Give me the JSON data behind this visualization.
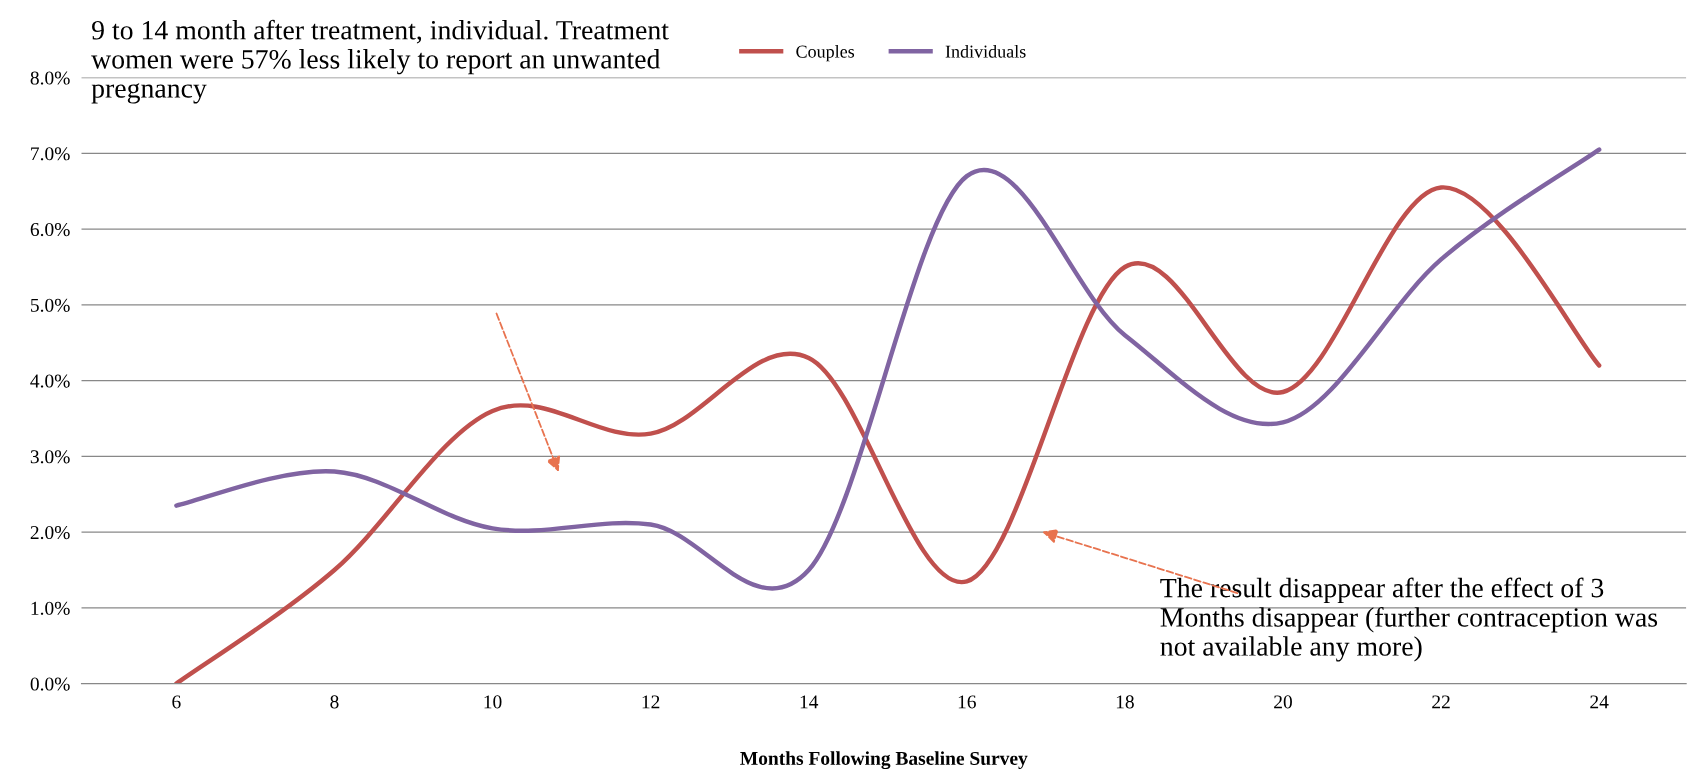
{
  "chart_data": {
    "type": "line",
    "xlabel": "Months Following Baseline Survey",
    "categories": [
      "6",
      "8",
      "10",
      "12",
      "14",
      "16",
      "18",
      "20",
      "22",
      "24"
    ],
    "series": [
      {
        "name": "Couples",
        "color": "#c0504d",
        "values": [
          0.0,
          1.5,
          3.6,
          3.3,
          4.3,
          1.35,
          5.5,
          3.85,
          6.55,
          4.2
        ]
      },
      {
        "name": "Individuals",
        "color": "#8064a2",
        "values": [
          2.35,
          2.8,
          2.05,
          2.1,
          1.5,
          6.7,
          4.6,
          3.45,
          5.6,
          7.05
        ]
      }
    ],
    "ylim": [
      0,
      8
    ],
    "yticks": [
      {
        "value": 0,
        "label": "0.0%"
      },
      {
        "value": 1,
        "label": "1.0%"
      },
      {
        "value": 2,
        "label": "2.0%"
      },
      {
        "value": 3,
        "label": "3.0%"
      },
      {
        "value": 4,
        "label": "4.0%"
      },
      {
        "value": 5,
        "label": "5.0%"
      },
      {
        "value": 6,
        "label": "6.0%"
      },
      {
        "value": 7,
        "label": "7.0%"
      },
      {
        "value": 8,
        "label": "8.0%"
      }
    ],
    "grid": "y",
    "legend": "top",
    "marker": "none",
    "line_style": "solid",
    "annotations": [
      "9 to 14 month after treatment, individual. Treatment women were 57% less likely to report an unwanted pregnancy",
      "The result disappear after the effect of 3 Months disappear (further contraception was not available any more)"
    ]
  }
}
